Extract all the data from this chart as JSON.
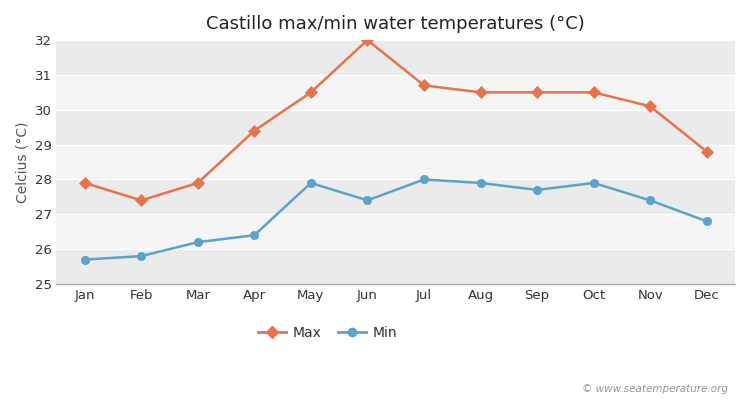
{
  "title": "Castillo max/min water temperatures (°C)",
  "ylabel": "Celcius (°C)",
  "months": [
    "Jan",
    "Feb",
    "Mar",
    "Apr",
    "May",
    "Jun",
    "Jul",
    "Aug",
    "Sep",
    "Oct",
    "Nov",
    "Dec"
  ],
  "max_temps": [
    27.9,
    27.4,
    27.9,
    29.4,
    30.5,
    32.0,
    30.7,
    30.5,
    30.5,
    30.5,
    30.1,
    28.8
  ],
  "min_temps": [
    25.7,
    25.8,
    26.2,
    26.4,
    27.9,
    27.4,
    28.0,
    27.9,
    27.7,
    27.9,
    27.4,
    26.8
  ],
  "max_color": "#e8724a",
  "min_color": "#5ba3c9",
  "bg_color": "#ffffff",
  "band_colors": [
    "#ebebeb",
    "#f5f5f5"
  ],
  "ylim": [
    25.0,
    32.0
  ],
  "yticks": [
    25,
    26,
    27,
    28,
    29,
    30,
    31,
    32
  ],
  "legend_labels": [
    "Max",
    "Min"
  ],
  "watermark": "© www.seatemperature.org",
  "title_fontsize": 13,
  "axis_label_fontsize": 10,
  "tick_fontsize": 9.5,
  "legend_fontsize": 10
}
